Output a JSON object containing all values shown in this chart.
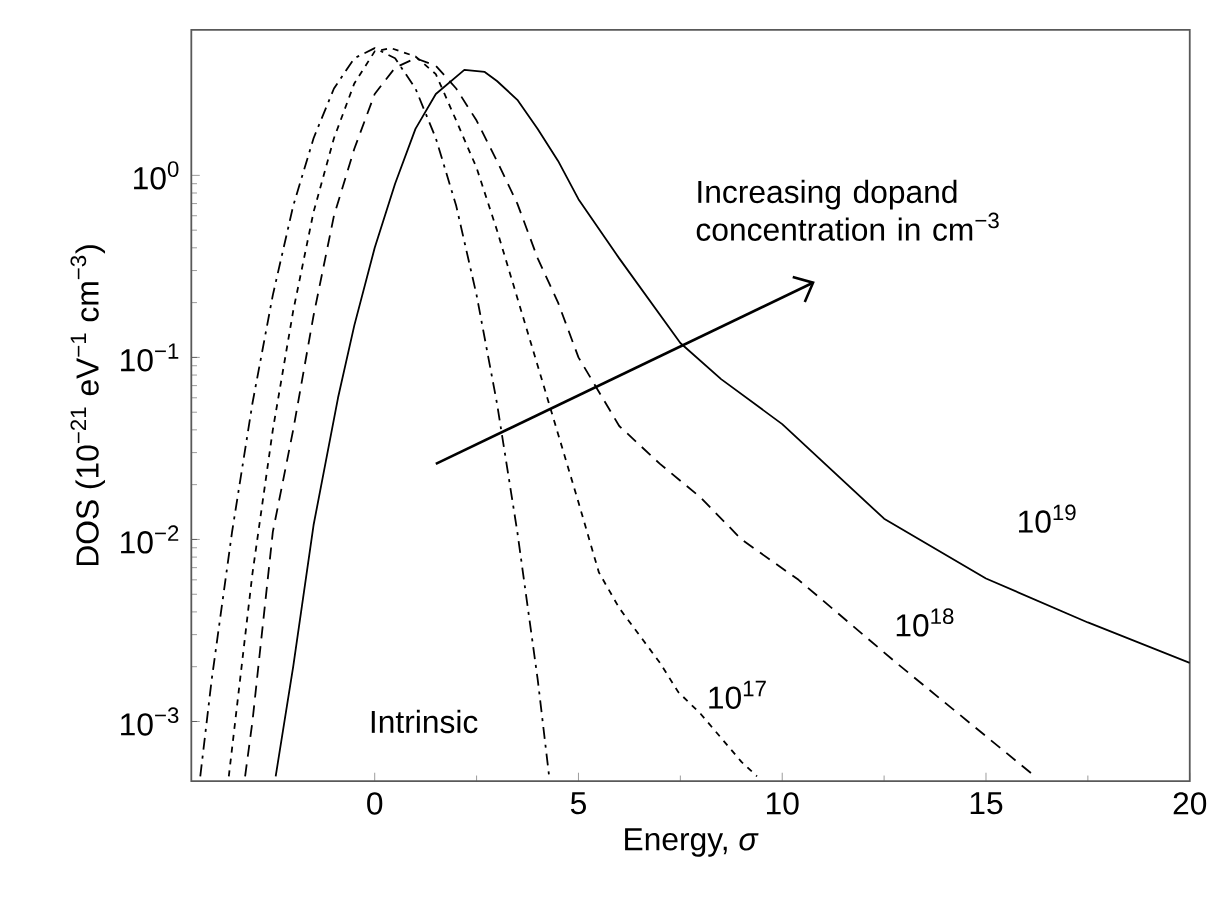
{
  "chart_data": {
    "type": "line",
    "xlabel": "Energy, *σ*",
    "ylabel": "DOS (10$^{−21}$ eV$^{−1}$ cm$^{−3}$)",
    "log": "y",
    "xlim": [
      -4.5,
      20
    ],
    "ylim": [
      0.00047,
      6.3
    ],
    "xticks": [
      0,
      5,
      10,
      15,
      20
    ],
    "yticks": [
      {
        "value": 0.001,
        "label": "10$^{−3}$"
      },
      {
        "value": 0.01,
        "label": "10$^{−2}$"
      },
      {
        "value": 0.1,
        "label": "10$^{−1}$"
      },
      {
        "value": 1,
        "label": "10$^{0}$"
      }
    ],
    "annotations": [
      "Increasing dopand concentration in cm$^{−3}$"
    ],
    "series": [
      {
        "name": "Intrinsic",
        "color": "#000000",
        "line_style": "dashdot",
        "x": [
          -4.28,
          -4,
          -3.5,
          -3,
          -2.5,
          -2,
          -1.5,
          -1,
          -0.5,
          0,
          0.5,
          1,
          1.5,
          2,
          2.5,
          3,
          3.5,
          4,
          4.28
        ],
        "values": [
          0.0005,
          0.0017,
          0.011,
          0.056,
          0.22,
          0.68,
          1.6,
          3.0,
          4.4,
          5.0,
          4.4,
          3.0,
          1.6,
          0.68,
          0.22,
          0.056,
          0.011,
          0.0017,
          0.0005
        ]
      },
      {
        "name": "10$^{17}$",
        "color": "#000000",
        "line_style": "dotted",
        "x": [
          -3.58,
          -3,
          -2.5,
          -2,
          -1.5,
          -1,
          -0.5,
          0,
          0.4,
          1,
          1.5,
          2,
          2.5,
          3,
          4,
          5,
          5.5,
          6,
          7,
          7.45,
          8,
          9,
          9.38
        ],
        "values": [
          0.0005,
          0.0065,
          0.04,
          0.18,
          0.63,
          1.6,
          3.2,
          4.8,
          5.0,
          4.5,
          3.6,
          2.0,
          1.1,
          0.5,
          0.09,
          0.016,
          0.0066,
          0.0042,
          0.0021,
          0.00145,
          0.0011,
          0.0006,
          0.0005
        ]
      },
      {
        "name": "10$^{18}$",
        "color": "#000000",
        "line_style": "dashed",
        "x": [
          -3.18,
          -3,
          -2.5,
          -2,
          -1.5,
          -1,
          -0.5,
          0,
          0.5,
          1,
          1.5,
          2,
          2.5,
          3,
          3.5,
          4,
          4.5,
          5,
          6,
          7,
          8,
          9,
          10.4,
          12.8,
          16.2
        ],
        "values": [
          0.0005,
          0.001,
          0.011,
          0.04,
          0.17,
          0.6,
          1.4,
          2.8,
          3.9,
          4.4,
          4.0,
          3.0,
          2.0,
          1.2,
          0.7,
          0.35,
          0.2,
          0.1,
          0.042,
          0.026,
          0.017,
          0.01,
          0.006,
          0.0021,
          0.0005
        ]
      },
      {
        "name": "10$^{19}$",
        "color": "#000000",
        "line_style": "solid",
        "x": [
          -2.43,
          -2,
          -1.5,
          -0.9,
          -0.5,
          0,
          0.5,
          1,
          1.5,
          2.2,
          2.7,
          3,
          3.5,
          4,
          4.5,
          5,
          6,
          7.5,
          8.5,
          10,
          12.5,
          15,
          17.5,
          20
        ],
        "values": [
          0.0005,
          0.002,
          0.012,
          0.06,
          0.15,
          0.4,
          0.9,
          1.8,
          2.8,
          3.8,
          3.7,
          3.3,
          2.6,
          1.8,
          1.2,
          0.74,
          0.35,
          0.12,
          0.076,
          0.043,
          0.013,
          0.0061,
          0.0035,
          0.0021
        ]
      }
    ]
  }
}
